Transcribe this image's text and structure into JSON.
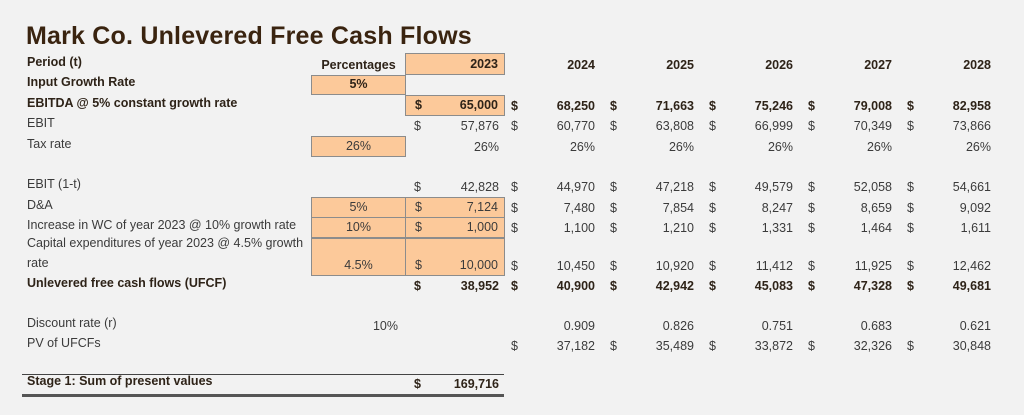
{
  "title": "Mark Co. Unlevered Free Cash Flows",
  "colors": {
    "input_fill": "#fcc99a",
    "background": "#f2f2f2",
    "title": "#3a2410"
  },
  "rows": [
    {
      "label": "Period (t)",
      "bold": true,
      "pct": "Percentages",
      "c2023": {
        "value": "2023"
      },
      "years": [
        {
          "value": "2024"
        },
        {
          "value": "2025"
        },
        {
          "value": "2026"
        },
        {
          "value": "2027"
        },
        {
          "value": "2028"
        }
      ]
    },
    {
      "label": "Input Growth Rate",
      "bold": true,
      "pct": "5%"
    },
    {
      "label": "EBITDA @ 5% constant growth rate",
      "bold": true,
      "c2023": {
        "dollar": "$",
        "value": "65,000"
      },
      "years": [
        {
          "dollar": "$",
          "value": "68,250"
        },
        {
          "dollar": "$",
          "value": "71,663"
        },
        {
          "dollar": "$",
          "value": "75,246"
        },
        {
          "dollar": "$",
          "value": "79,008"
        },
        {
          "dollar": "$",
          "value": "82,958"
        }
      ]
    },
    {
      "label": "EBIT",
      "c2023": {
        "dollar": "$",
        "value": "57,876"
      },
      "years": [
        {
          "dollar": "$",
          "value": "60,770"
        },
        {
          "dollar": "$",
          "value": "63,808"
        },
        {
          "dollar": "$",
          "value": "66,999"
        },
        {
          "dollar": "$",
          "value": "70,349"
        },
        {
          "dollar": "$",
          "value": "73,866"
        }
      ]
    },
    {
      "label": "Tax rate",
      "pct": "26%",
      "c2023": {
        "value": "26%"
      },
      "years": [
        {
          "value": "26%"
        },
        {
          "value": "26%"
        },
        {
          "value": "26%"
        },
        {
          "value": "26%"
        },
        {
          "value": "26%"
        }
      ]
    },
    {
      "label": "EBIT (1-t)",
      "c2023": {
        "dollar": "$",
        "value": "42,828"
      },
      "years": [
        {
          "dollar": "$",
          "value": "44,970"
        },
        {
          "dollar": "$",
          "value": "47,218"
        },
        {
          "dollar": "$",
          "value": "49,579"
        },
        {
          "dollar": "$",
          "value": "52,058"
        },
        {
          "dollar": "$",
          "value": "54,661"
        }
      ]
    },
    {
      "label": "D&A",
      "pct": "5%",
      "c2023": {
        "dollar": "$",
        "value": "7,124"
      },
      "years": [
        {
          "dollar": "$",
          "value": "7,480"
        },
        {
          "dollar": "$",
          "value": "7,854"
        },
        {
          "dollar": "$",
          "value": "8,247"
        },
        {
          "dollar": "$",
          "value": "8,659"
        },
        {
          "dollar": "$",
          "value": "9,092"
        }
      ]
    },
    {
      "label": "Increase in WC of year 2023 @ 10% growth rate",
      "pct": "10%",
      "c2023": {
        "dollar": "$",
        "value": "1,000"
      },
      "years": [
        {
          "dollar": "$",
          "value": "1,100"
        },
        {
          "dollar": "$",
          "value": "1,210"
        },
        {
          "dollar": "$",
          "value": "1,331"
        },
        {
          "dollar": "$",
          "value": "1,464"
        },
        {
          "dollar": "$",
          "value": "1,611"
        }
      ]
    },
    {
      "label": "Capital expenditures of year 2023 @ 4.5% growth rate",
      "pct": "4.5%",
      "c2023": {
        "dollar": "$",
        "value": "10,000"
      },
      "years": [
        {
          "dollar": "$",
          "value": "10,450"
        },
        {
          "dollar": "$",
          "value": "10,920"
        },
        {
          "dollar": "$",
          "value": "11,412"
        },
        {
          "dollar": "$",
          "value": "11,925"
        },
        {
          "dollar": "$",
          "value": "12,462"
        }
      ]
    },
    {
      "label": "Unlevered free cash flows (UFCF)",
      "bold": true,
      "c2023": {
        "dollar": "$",
        "value": "38,952"
      },
      "years": [
        {
          "dollar": "$",
          "value": "40,900"
        },
        {
          "dollar": "$",
          "value": "42,942"
        },
        {
          "dollar": "$",
          "value": "45,083"
        },
        {
          "dollar": "$",
          "value": "47,328"
        },
        {
          "dollar": "$",
          "value": "49,681"
        }
      ]
    },
    {
      "label": "Discount rate (r)",
      "pct": "10%",
      "years": [
        {
          "value": "0.909"
        },
        {
          "value": "0.826"
        },
        {
          "value": "0.751"
        },
        {
          "value": "0.683"
        },
        {
          "value": "0.621"
        }
      ]
    },
    {
      "label": "PV of UFCFs",
      "years": [
        {
          "dollar": "$",
          "value": "37,182"
        },
        {
          "dollar": "$",
          "value": "35,489"
        },
        {
          "dollar": "$",
          "value": "33,872"
        },
        {
          "dollar": "$",
          "value": "32,326"
        },
        {
          "dollar": "$",
          "value": "30,848"
        }
      ]
    },
    {
      "label": "Stage 1: Sum of present values",
      "bold": true,
      "c2023": {
        "dollar": "$",
        "value": "169,716"
      }
    }
  ]
}
